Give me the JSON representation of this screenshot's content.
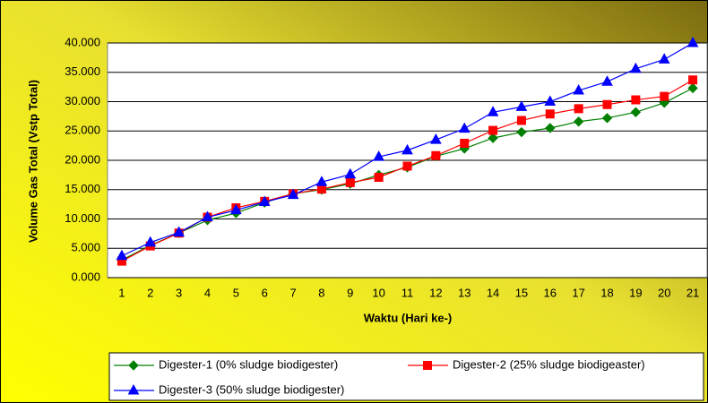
{
  "chart_data": {
    "type": "line",
    "y_label": "Volume Gas Total (Vstp Total)",
    "x_label": "Waktu (Hari ke-)",
    "categories": [
      "1",
      "2",
      "3",
      "4",
      "5",
      "6",
      "7",
      "8",
      "9",
      "10",
      "11",
      "12",
      "13",
      "14",
      "15",
      "16",
      "17",
      "18",
      "19",
      "20",
      "21"
    ],
    "series": [
      {
        "name": "Digester-1 (0% sludge biodigester)",
        "color": "#008000",
        "marker": "diamond",
        "values": [
          3.0,
          5.5,
          7.6,
          9.8,
          11.0,
          12.8,
          14.3,
          15.0,
          16.0,
          17.5,
          18.8,
          20.7,
          22.0,
          23.8,
          24.8,
          25.5,
          26.6,
          27.2,
          28.2,
          29.8,
          32.3
        ]
      },
      {
        "name": "Digester-2 (25% sludge biodigeaster)",
        "color": "#ff0000",
        "marker": "square",
        "values": [
          2.8,
          5.4,
          7.6,
          10.3,
          11.9,
          13.0,
          14.3,
          15.1,
          16.2,
          17.1,
          19.0,
          20.8,
          22.9,
          25.1,
          26.8,
          27.9,
          28.8,
          29.5,
          30.3,
          30.9,
          33.7
        ]
      },
      {
        "name": "Digester-3 (50% sludge biodigester)",
        "color": "#0000ff",
        "marker": "triangle",
        "values": [
          3.7,
          6.0,
          7.7,
          10.3,
          11.5,
          12.9,
          14.1,
          16.3,
          17.6,
          20.6,
          21.7,
          23.5,
          25.4,
          28.2,
          29.1,
          30.0,
          31.9,
          33.4,
          35.6,
          37.2,
          40.0
        ]
      }
    ],
    "ylim": [
      0,
      40
    ],
    "yticks": [
      {
        "value": 0,
        "label": "0.000"
      },
      {
        "value": 5,
        "label": "5.000"
      },
      {
        "value": 10,
        "label": "10.000"
      },
      {
        "value": 15,
        "label": "15.000"
      },
      {
        "value": 20,
        "label": "20.000"
      },
      {
        "value": 25,
        "label": "25.000"
      },
      {
        "value": 30,
        "label": "30.000"
      },
      {
        "value": 35,
        "label": "35.000"
      },
      {
        "value": 40,
        "label": "40.000"
      }
    ],
    "grid": true,
    "legend": "bottom"
  }
}
